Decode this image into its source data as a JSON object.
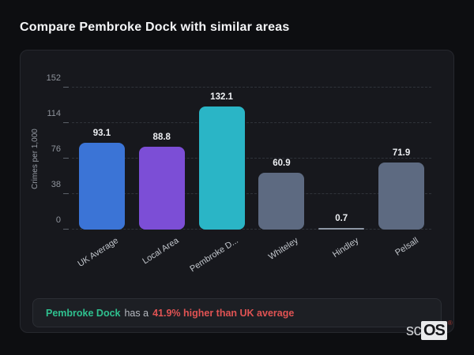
{
  "page": {
    "title": "Compare Pembroke Dock with similar areas"
  },
  "chart_data": {
    "type": "bar",
    "title": "Compare Pembroke Dock with similar areas",
    "xlabel": "",
    "ylabel": "Crimes per 1,000",
    "ylim": [
      0,
      152
    ],
    "yticks": [
      0,
      38,
      76,
      114,
      152
    ],
    "grid": "horizontal-dashed",
    "legend_position": "none",
    "categories": [
      "UK Average",
      "Local Area",
      "Pembroke Dock",
      "Whiteley",
      "Hindley",
      "Pelsall"
    ],
    "display_labels": [
      "UK Average",
      "Local Area",
      "Pembroke D...",
      "Whiteley",
      "Hindley",
      "Pelsall"
    ],
    "values": [
      93.1,
      88.8,
      132.1,
      60.9,
      0.7,
      71.9
    ],
    "bar_colors": [
      "#3b74d6",
      "#7c4ed6",
      "#2ab5c6",
      "#5d6a81",
      "#8e97a5",
      "#5d6a81"
    ]
  },
  "note": {
    "area_label": "Pembroke Dock",
    "connector": "has a",
    "stat": "41.9% higher than UK average",
    "area_color": "#2fc08f",
    "stat_color": "#e05353"
  },
  "logo": {
    "prefix": "sc",
    "suffix": "OS",
    "registered": "®"
  },
  "theme": {
    "page_bg": "#0d0e11",
    "card_bg": "#17181d",
    "card_border": "#26282e",
    "grid_color": "#30333a",
    "tick_color": "#8f949c",
    "value_color": "#eef0f3"
  }
}
